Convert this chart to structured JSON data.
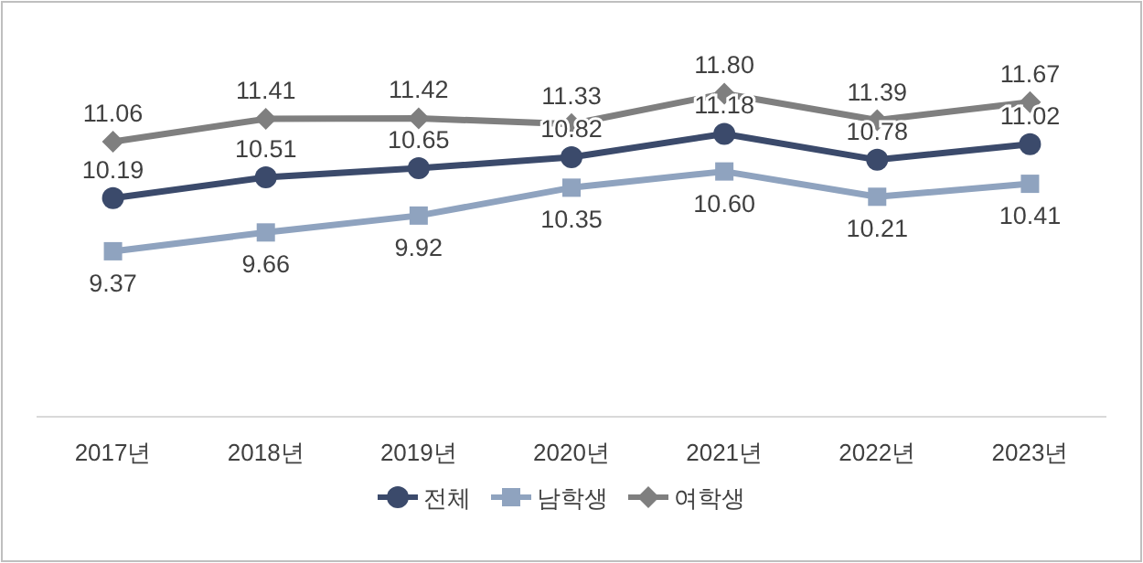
{
  "chart_data": {
    "type": "line",
    "categories": [
      "2017년",
      "2018년",
      "2019년",
      "2020년",
      "2021년",
      "2022년",
      "2023년"
    ],
    "series": [
      {
        "name": "전체",
        "color": "#3b4a6b",
        "marker": "circle",
        "values": [
          10.19,
          10.51,
          10.65,
          10.82,
          11.18,
          10.78,
          11.02
        ],
        "value_labels": [
          "10.19",
          "10.51",
          "10.65",
          "10.82",
          "11.18",
          "10.78",
          "11.02"
        ]
      },
      {
        "name": "남학생",
        "color": "#8fa3bf",
        "marker": "square",
        "values": [
          9.37,
          9.66,
          9.92,
          10.35,
          10.6,
          10.21,
          10.41
        ],
        "value_labels": [
          "9.37",
          "9.66",
          "9.92",
          "10.35",
          "10.60",
          "10.21",
          "10.41"
        ]
      },
      {
        "name": "여학생",
        "color": "#7f7f7f",
        "marker": "diamond",
        "values": [
          11.06,
          11.41,
          11.42,
          11.33,
          11.8,
          11.39,
          11.67
        ],
        "value_labels": [
          "11.06",
          "11.41",
          "11.42",
          "11.33",
          "11.80",
          "11.39",
          "11.67"
        ]
      }
    ],
    "legend": "bottom",
    "tick_labels": "x"
  }
}
